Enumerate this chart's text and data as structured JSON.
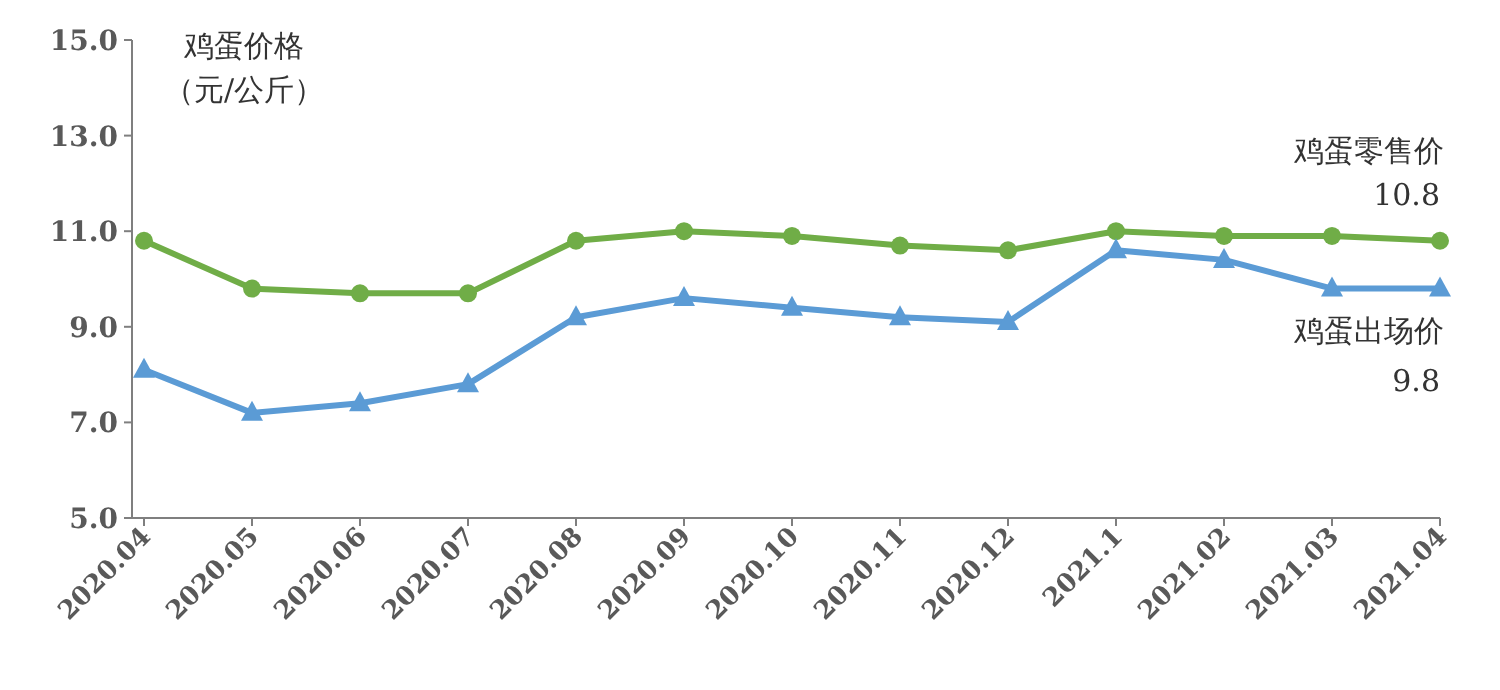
{
  "chart_data": {
    "type": "line",
    "ylabel": "鸡蛋价格（元/公斤）",
    "categories": [
      "2020.04",
      "2020.05",
      "2020.06",
      "2020.07",
      "2020.08",
      "2020.09",
      "2020.10",
      "2020.11",
      "2020.12",
      "2021.1",
      "2021.02",
      "2021.03",
      "2021.04"
    ],
    "series": [
      {
        "name": "鸡蛋零售价",
        "color": "#70ad47",
        "marker": "circle",
        "values": [
          10.8,
          9.8,
          9.7,
          9.7,
          10.8,
          11.0,
          10.9,
          10.7,
          10.6,
          11.0,
          10.9,
          10.9,
          10.8
        ],
        "value_labels": [
          null,
          null,
          null,
          null,
          null,
          null,
          null,
          null,
          null,
          null,
          null,
          null,
          "10.8"
        ]
      },
      {
        "name": "鸡蛋出场价",
        "color": "#5b9bd5",
        "marker": "triangle",
        "values": [
          8.1,
          7.2,
          7.4,
          7.8,
          9.2,
          9.6,
          9.4,
          9.2,
          9.1,
          10.6,
          10.4,
          9.8,
          9.8
        ],
        "value_labels": [
          null,
          null,
          null,
          null,
          null,
          null,
          null,
          null,
          null,
          null,
          null,
          null,
          "9.8"
        ]
      }
    ],
    "ylim": [
      5.0,
      15.0
    ],
    "yticks": [
      {
        "value": 5,
        "label": "5.0"
      },
      {
        "value": 7,
        "label": "7.0"
      },
      {
        "value": 9,
        "label": "9.0"
      },
      {
        "value": 11,
        "label": "11.0"
      },
      {
        "value": 13,
        "label": "13.0"
      },
      {
        "value": 15,
        "label": "15.0"
      }
    ],
    "grid": false,
    "legend": false,
    "line_style": "solid"
  }
}
